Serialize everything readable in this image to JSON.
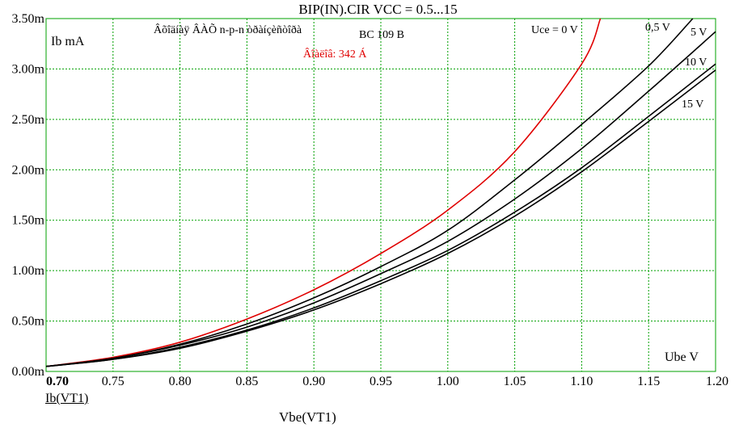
{
  "chart_data": {
    "type": "line",
    "title": "BIP(IN).CIR VCC = 0.5...15",
    "xlabel": "Vbe(VT1)",
    "ylabel": "Ib(VT1)",
    "xlim": [
      0.7,
      1.2
    ],
    "ylim": [
      0,
      3.5
    ],
    "grid": true,
    "x_ticks": [
      "0.70",
      "0.75",
      "0.80",
      "0.85",
      "0.90",
      "0.95",
      "1.00",
      "1.05",
      "1.10",
      "1.15",
      "1.20"
    ],
    "y_ticks": [
      "0.00m",
      "0.50m",
      "1.00m",
      "1.50m",
      "2.00m",
      "2.50m",
      "3.00m",
      "3.50m"
    ],
    "annotations": {
      "y_unit": "Ib mA",
      "x_unit": "Ube V",
      "subtitle": "Âõîäíàÿ ÂÀÕ n-p-n òðàíçèñòîðà",
      "device": "BC 109 B",
      "beta": "Âîàëîâ: 342 Á"
    },
    "series": [
      {
        "name": "Uce = 0 V",
        "color": "#e00000",
        "x": [
          0.7,
          0.75,
          0.8,
          0.85,
          0.9,
          0.95,
          1.0,
          1.05,
          1.1,
          1.114
        ],
        "y": [
          0.05,
          0.14,
          0.29,
          0.52,
          0.81,
          1.17,
          1.6,
          2.18,
          3.05,
          3.5
        ]
      },
      {
        "name": "0,5 V",
        "color": "#000000",
        "x": [
          0.7,
          0.75,
          0.8,
          0.85,
          0.9,
          0.95,
          1.0,
          1.05,
          1.1,
          1.15,
          1.183
        ],
        "y": [
          0.05,
          0.13,
          0.27,
          0.47,
          0.73,
          1.04,
          1.4,
          1.9,
          2.45,
          3.03,
          3.5
        ]
      },
      {
        "name": "5 V",
        "color": "#000000",
        "x": [
          0.7,
          0.75,
          0.8,
          0.85,
          0.9,
          0.95,
          1.0,
          1.05,
          1.1,
          1.15,
          1.2
        ],
        "y": [
          0.05,
          0.13,
          0.26,
          0.44,
          0.68,
          0.97,
          1.29,
          1.71,
          2.21,
          2.78,
          3.37
        ]
      },
      {
        "name": "10 V",
        "color": "#000000",
        "x": [
          0.7,
          0.75,
          0.8,
          0.85,
          0.9,
          0.95,
          1.0,
          1.05,
          1.1,
          1.15,
          1.2
        ],
        "y": [
          0.05,
          0.12,
          0.24,
          0.41,
          0.63,
          0.9,
          1.2,
          1.58,
          2.02,
          2.53,
          3.05
        ]
      },
      {
        "name": "15 V",
        "color": "#000000",
        "x": [
          0.7,
          0.75,
          0.8,
          0.85,
          0.9,
          0.95,
          1.0,
          1.05,
          1.1,
          1.15,
          1.2
        ],
        "y": [
          0.05,
          0.12,
          0.23,
          0.4,
          0.61,
          0.87,
          1.17,
          1.54,
          1.98,
          2.48,
          2.99
        ]
      }
    ]
  }
}
